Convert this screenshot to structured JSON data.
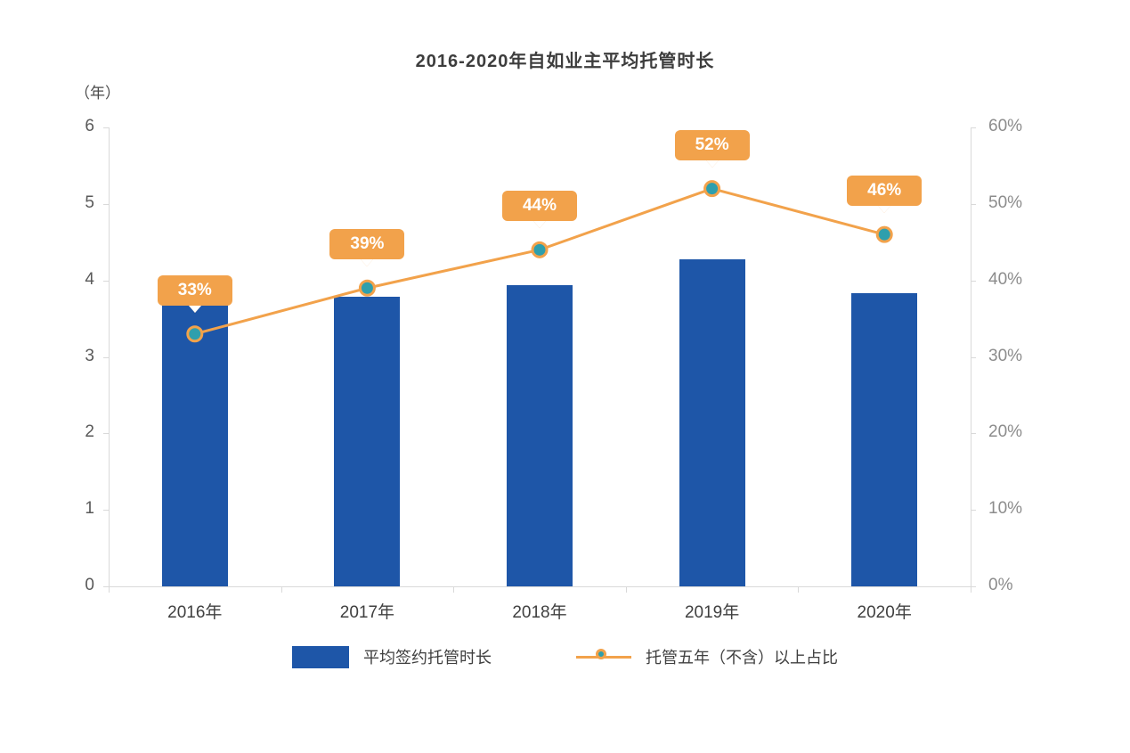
{
  "title": "2016-2020年自如业主平均托管时长",
  "chart_data": {
    "type": "combo-bar-line",
    "title": "2016-2020年自如业主平均托管时长",
    "categories": [
      "2016年",
      "2017年",
      "2018年",
      "2019年",
      "2020年"
    ],
    "series": [
      {
        "name": "平均签约托管时长",
        "type": "bar",
        "axis": "left",
        "values": [
          3.73,
          3.79,
          3.94,
          4.28,
          3.83
        ],
        "color": "#1E56A8"
      },
      {
        "name": "托管五年（不含）以上占比",
        "type": "line",
        "axis": "right",
        "values": [
          33,
          39,
          44,
          52,
          46
        ],
        "labels": [
          "33%",
          "39%",
          "44%",
          "52%",
          "46%"
        ],
        "color": "#F2A24B",
        "marker_color": "#2E9FAD"
      }
    ],
    "left_axis": {
      "unit_label": "（年）",
      "min": 0,
      "max": 6,
      "ticks": [
        "0",
        "1",
        "2",
        "3",
        "4",
        "5",
        "6"
      ],
      "tick_values": [
        0,
        1,
        2,
        3,
        4,
        5,
        6
      ]
    },
    "right_axis": {
      "min": 0,
      "max": 60,
      "ticks": [
        "0%",
        "10%",
        "20%",
        "30%",
        "40%",
        "50%",
        "60%"
      ],
      "tick_values": [
        0,
        10,
        20,
        30,
        40,
        50,
        60
      ]
    },
    "grid": false,
    "legend_position": "bottom"
  },
  "legend": {
    "bar_label": "平均签约托管时长",
    "line_label": "托管五年（不含）以上占比"
  },
  "colors": {
    "bar": "#1E56A8",
    "line": "#F2A24B",
    "marker": "#2E9FAD",
    "axis": "#d9d9d9"
  }
}
